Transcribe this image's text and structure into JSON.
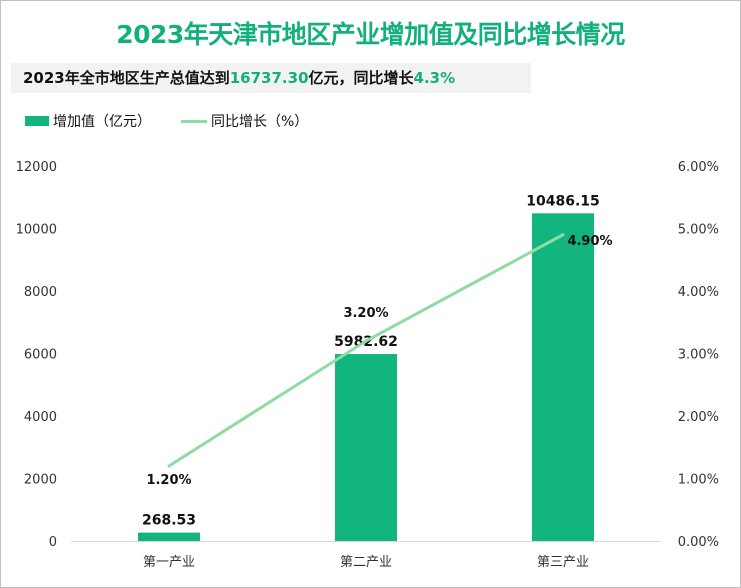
{
  "title": "2023年天津市地区产业增加值及同比增长情况",
  "subtitle": {
    "prefix": "2023年全市地区生产总值达到",
    "gdp": "16737.30",
    "mid": "亿元，同比增长",
    "growth": "4.3%"
  },
  "colors": {
    "bar": "#12b57e",
    "line": "#8fdca3",
    "title": "#12b07c"
  },
  "chart_data": {
    "type": "bar+line",
    "categories": [
      "第一产业",
      "第二产业",
      "第三产业"
    ],
    "series": [
      {
        "name": "增加值（亿元）",
        "type": "bar",
        "axis": "left",
        "values": [
          268.53,
          5982.62,
          10486.15
        ],
        "labels": [
          "268.53",
          "5982.62",
          "10486.15"
        ]
      },
      {
        "name": "同比增长（%）",
        "type": "line",
        "axis": "right",
        "values": [
          1.2,
          3.2,
          4.9
        ],
        "labels": [
          "1.20%",
          "3.20%",
          "4.90%"
        ]
      }
    ],
    "left_axis": {
      "ylim": [
        0,
        12000
      ],
      "ticks": [
        "0",
        "2000",
        "4000",
        "6000",
        "8000",
        "10000",
        "12000"
      ]
    },
    "right_axis": {
      "ylim": [
        0,
        6
      ],
      "ticks": [
        "0.00%",
        "1.00%",
        "2.00%",
        "3.00%",
        "4.00%",
        "5.00%",
        "6.00%"
      ]
    },
    "grid": false,
    "legend": "top-left"
  }
}
